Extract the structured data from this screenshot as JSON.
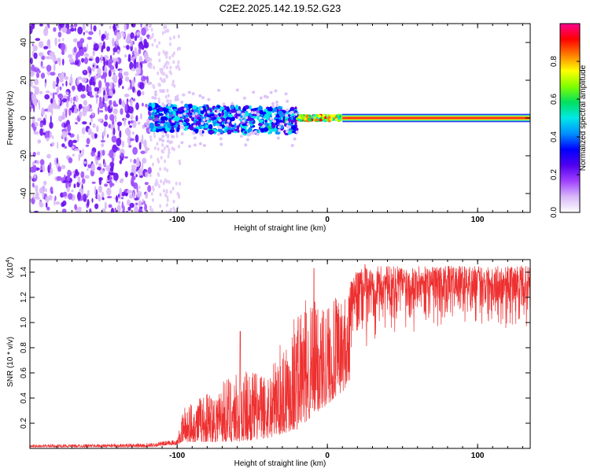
{
  "title": "C2E2.2025.142.19.52.G23",
  "chart_data": [
    {
      "type": "heatmap",
      "xlabel": "Height of straight line (km)",
      "ylabel": "Frequency (Hz)",
      "xlim": [
        -198,
        135
      ],
      "ylim": [
        -50,
        50
      ],
      "xticks": [
        -100,
        0,
        100
      ],
      "yticks": [
        -40,
        -20,
        0,
        20,
        40
      ],
      "colorbar": {
        "label": "Normalized spectral amplitude",
        "range": [
          0,
          1
        ],
        "ticks": [
          "0.0",
          "0.2",
          "0.4",
          "0.6",
          "0.8"
        ],
        "colors": [
          "#ffffff",
          "#d8b8f8",
          "#a040ff",
          "#5000f0",
          "#0000ff",
          "#0090ff",
          "#00e8e8",
          "#00e060",
          "#80ff00",
          "#ffff00",
          "#ff8000",
          "#ff0000",
          "#ff0090"
        ]
      },
      "regions": [
        {
          "x": [
            -198,
            -118
          ],
          "freq": [
            -50,
            50
          ],
          "level": "noise"
        },
        {
          "x": [
            -118,
            -20
          ],
          "freq": [
            -8,
            6
          ],
          "level": "mid",
          "note": "broadband"
        },
        {
          "x": [
            -20,
            10
          ],
          "freq": [
            -2,
            2
          ],
          "level": "high"
        },
        {
          "x": [
            10,
            135
          ],
          "freq": [
            -1,
            1
          ],
          "level": "max"
        }
      ]
    },
    {
      "type": "line",
      "xlabel": "Height of straight line (km)",
      "ylabel": "SNR (10 * v/v)",
      "yscale_label": "(x10",
      "yscale_exp": "4",
      "xlim": [
        -198,
        135
      ],
      "ylim": [
        0,
        1.5
      ],
      "xticks": [
        -100,
        0,
        100
      ],
      "yticks": [
        0.2,
        0.4,
        0.6,
        0.8,
        1.0,
        1.2,
        1.4
      ],
      "color": "#ee3030",
      "envelope": {
        "x": [
          -198,
          -120,
          -100,
          -95,
          -80,
          -60,
          -40,
          -20,
          -10,
          0,
          10,
          20,
          30,
          50,
          80,
          100,
          120,
          135
        ],
        "low": [
          0.01,
          0.01,
          0.03,
          0.05,
          0.05,
          0.05,
          0.08,
          0.15,
          0.25,
          0.35,
          0.45,
          0.6,
          0.75,
          0.85,
          0.9,
          0.88,
          0.85,
          0.85
        ],
        "high": [
          0.03,
          0.04,
          0.07,
          0.35,
          0.45,
          0.65,
          0.6,
          1.15,
          1.2,
          1.2,
          1.2,
          1.42,
          1.45,
          1.45,
          1.45,
          1.45,
          1.45,
          1.45
        ]
      },
      "peaks": [
        {
          "x": -58,
          "y": 0.93
        },
        {
          "x": -9,
          "y": 1.43
        },
        {
          "x": 25,
          "y": 1.46
        }
      ]
    }
  ]
}
